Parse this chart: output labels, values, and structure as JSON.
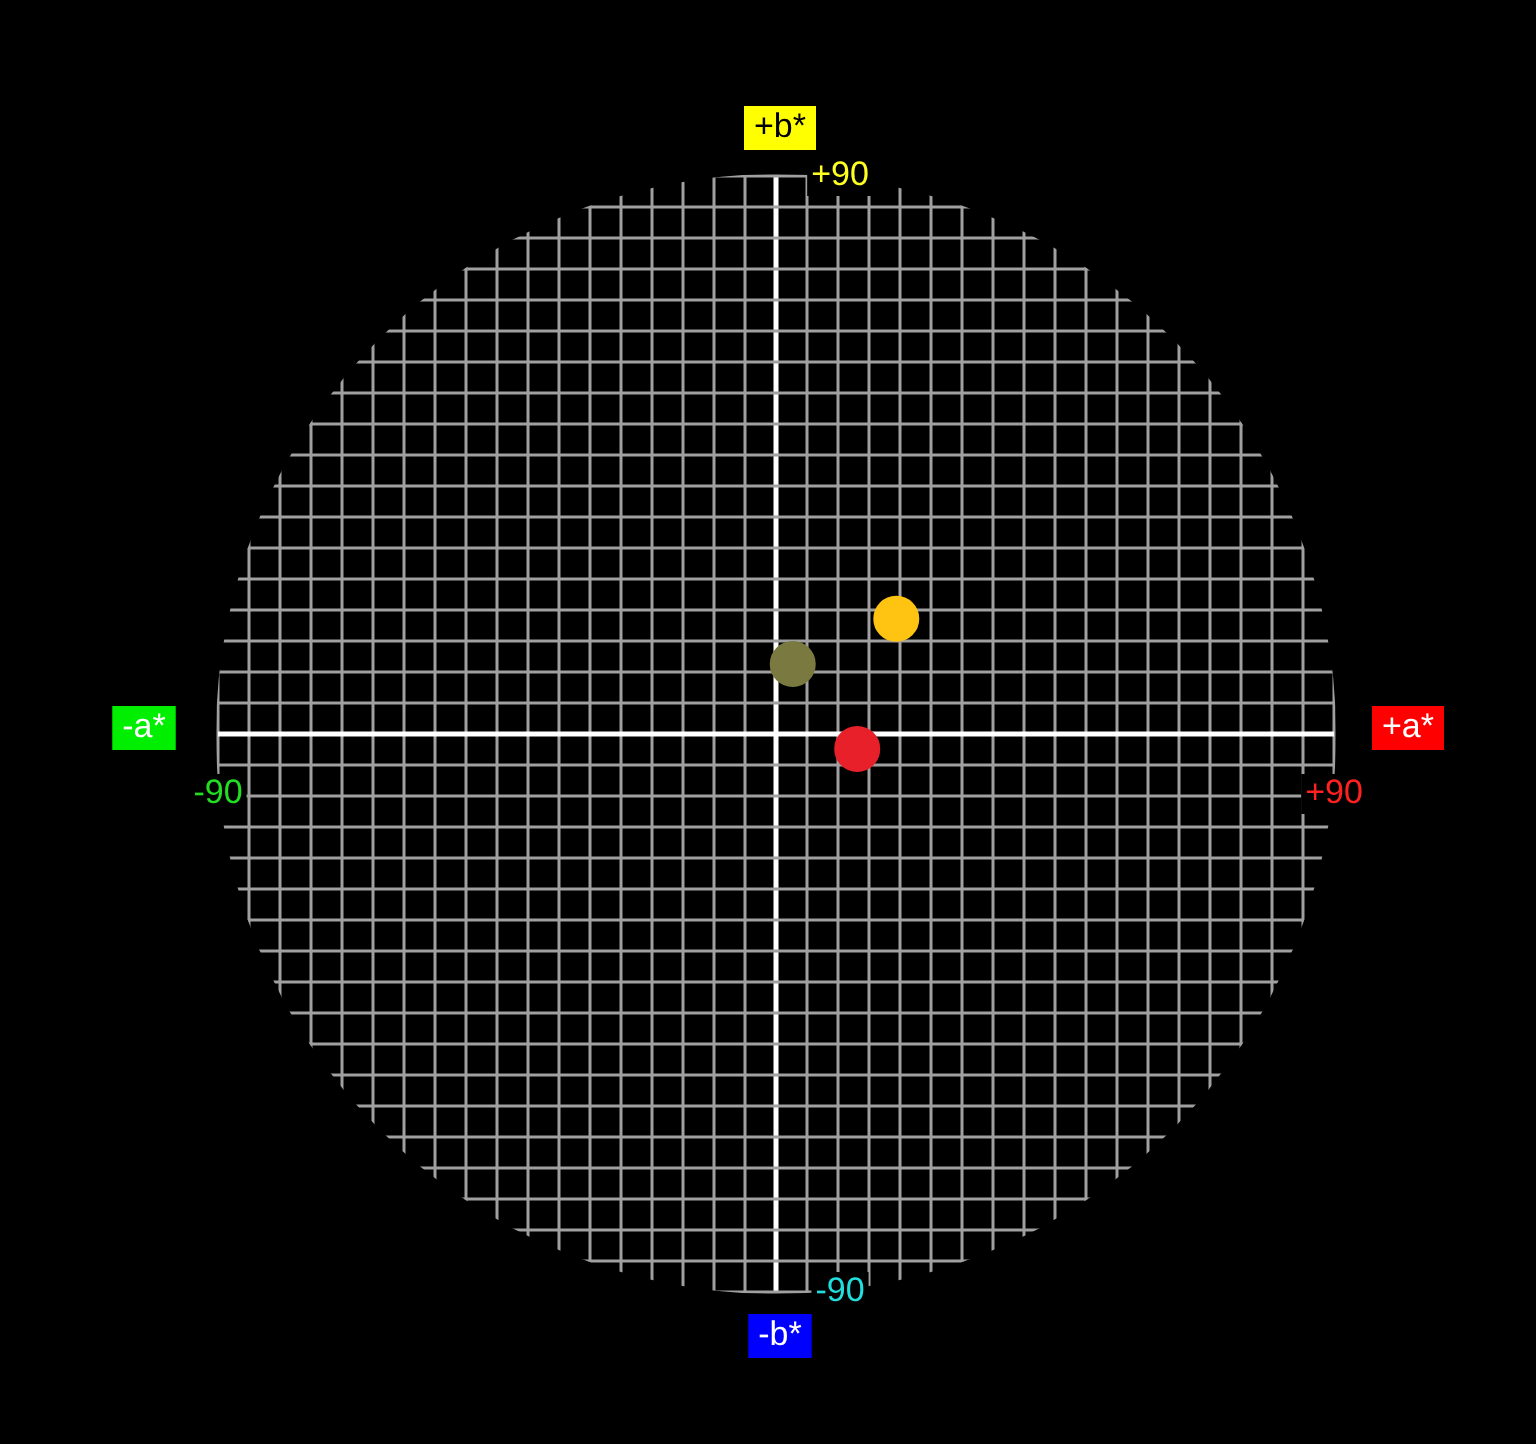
{
  "chart_data": {
    "type": "scatter",
    "x": [
      2.7,
      19.4,
      13.1
    ],
    "values": [
      11.3,
      18.6,
      -2.4
    ],
    "colors": [
      "#7a7a40",
      "#ffc312",
      "#e8202a"
    ],
    "marker": "circle",
    "xlim": [
      -90,
      90
    ],
    "ylim": [
      -90,
      90
    ],
    "xticks": [
      {
        "value": -90,
        "label": "-90"
      },
      {
        "value": -85,
        "label": null
      },
      {
        "value": -80,
        "label": null
      },
      {
        "value": -75,
        "label": null
      },
      {
        "value": -70,
        "label": null
      },
      {
        "value": -65,
        "label": null
      },
      {
        "value": -60,
        "label": null
      },
      {
        "value": -55,
        "label": null
      },
      {
        "value": -50,
        "label": null
      },
      {
        "value": -45,
        "label": null
      },
      {
        "value": -40,
        "label": null
      },
      {
        "value": -35,
        "label": null
      },
      {
        "value": -30,
        "label": null
      },
      {
        "value": -25,
        "label": null
      },
      {
        "value": -20,
        "label": null
      },
      {
        "value": -15,
        "label": null
      },
      {
        "value": -10,
        "label": null
      },
      {
        "value": -5,
        "label": null
      },
      {
        "value": 0,
        "label": null
      },
      {
        "value": 5,
        "label": null
      },
      {
        "value": 10,
        "label": null
      },
      {
        "value": 15,
        "label": null
      },
      {
        "value": 20,
        "label": null
      },
      {
        "value": 25,
        "label": null
      },
      {
        "value": 30,
        "label": null
      },
      {
        "value": 35,
        "label": null
      },
      {
        "value": 40,
        "label": null
      },
      {
        "value": 45,
        "label": null
      },
      {
        "value": 50,
        "label": null
      },
      {
        "value": 55,
        "label": null
      },
      {
        "value": 60,
        "label": null
      },
      {
        "value": 65,
        "label": null
      },
      {
        "value": 70,
        "label": null
      },
      {
        "value": 75,
        "label": null
      },
      {
        "value": 80,
        "label": null
      },
      {
        "value": 85,
        "label": null
      },
      {
        "value": 90,
        "label": "+90"
      }
    ],
    "yticks": [
      {
        "value": -90,
        "label": "-90"
      },
      {
        "value": -85,
        "label": null
      },
      {
        "value": -80,
        "label": null
      },
      {
        "value": -75,
        "label": null
      },
      {
        "value": -70,
        "label": null
      },
      {
        "value": -65,
        "label": null
      },
      {
        "value": -60,
        "label": null
      },
      {
        "value": -55,
        "label": null
      },
      {
        "value": -50,
        "label": null
      },
      {
        "value": -45,
        "label": null
      },
      {
        "value": -40,
        "label": null
      },
      {
        "value": -35,
        "label": null
      },
      {
        "value": -30,
        "label": null
      },
      {
        "value": -25,
        "label": null
      },
      {
        "value": -20,
        "label": null
      },
      {
        "value": -15,
        "label": null
      },
      {
        "value": -10,
        "label": null
      },
      {
        "value": -5,
        "label": null
      },
      {
        "value": 0,
        "label": null
      },
      {
        "value": 5,
        "label": null
      },
      {
        "value": 10,
        "label": null
      },
      {
        "value": 15,
        "label": null
      },
      {
        "value": 20,
        "label": null
      },
      {
        "value": 25,
        "label": null
      },
      {
        "value": 30,
        "label": null
      },
      {
        "value": 35,
        "label": null
      },
      {
        "value": 40,
        "label": null
      },
      {
        "value": 45,
        "label": null
      },
      {
        "value": 50,
        "label": null
      },
      {
        "value": 55,
        "label": null
      },
      {
        "value": 60,
        "label": null
      },
      {
        "value": 65,
        "label": null
      },
      {
        "value": 70,
        "label": null
      },
      {
        "value": 75,
        "label": null
      },
      {
        "value": 80,
        "label": null
      },
      {
        "value": 85,
        "label": null
      },
      {
        "value": 90,
        "label": "+90"
      }
    ],
    "grid": true,
    "annotations": [
      "+b*",
      "-a*",
      "+a*",
      "-b*"
    ],
    "legend": false
  }
}
